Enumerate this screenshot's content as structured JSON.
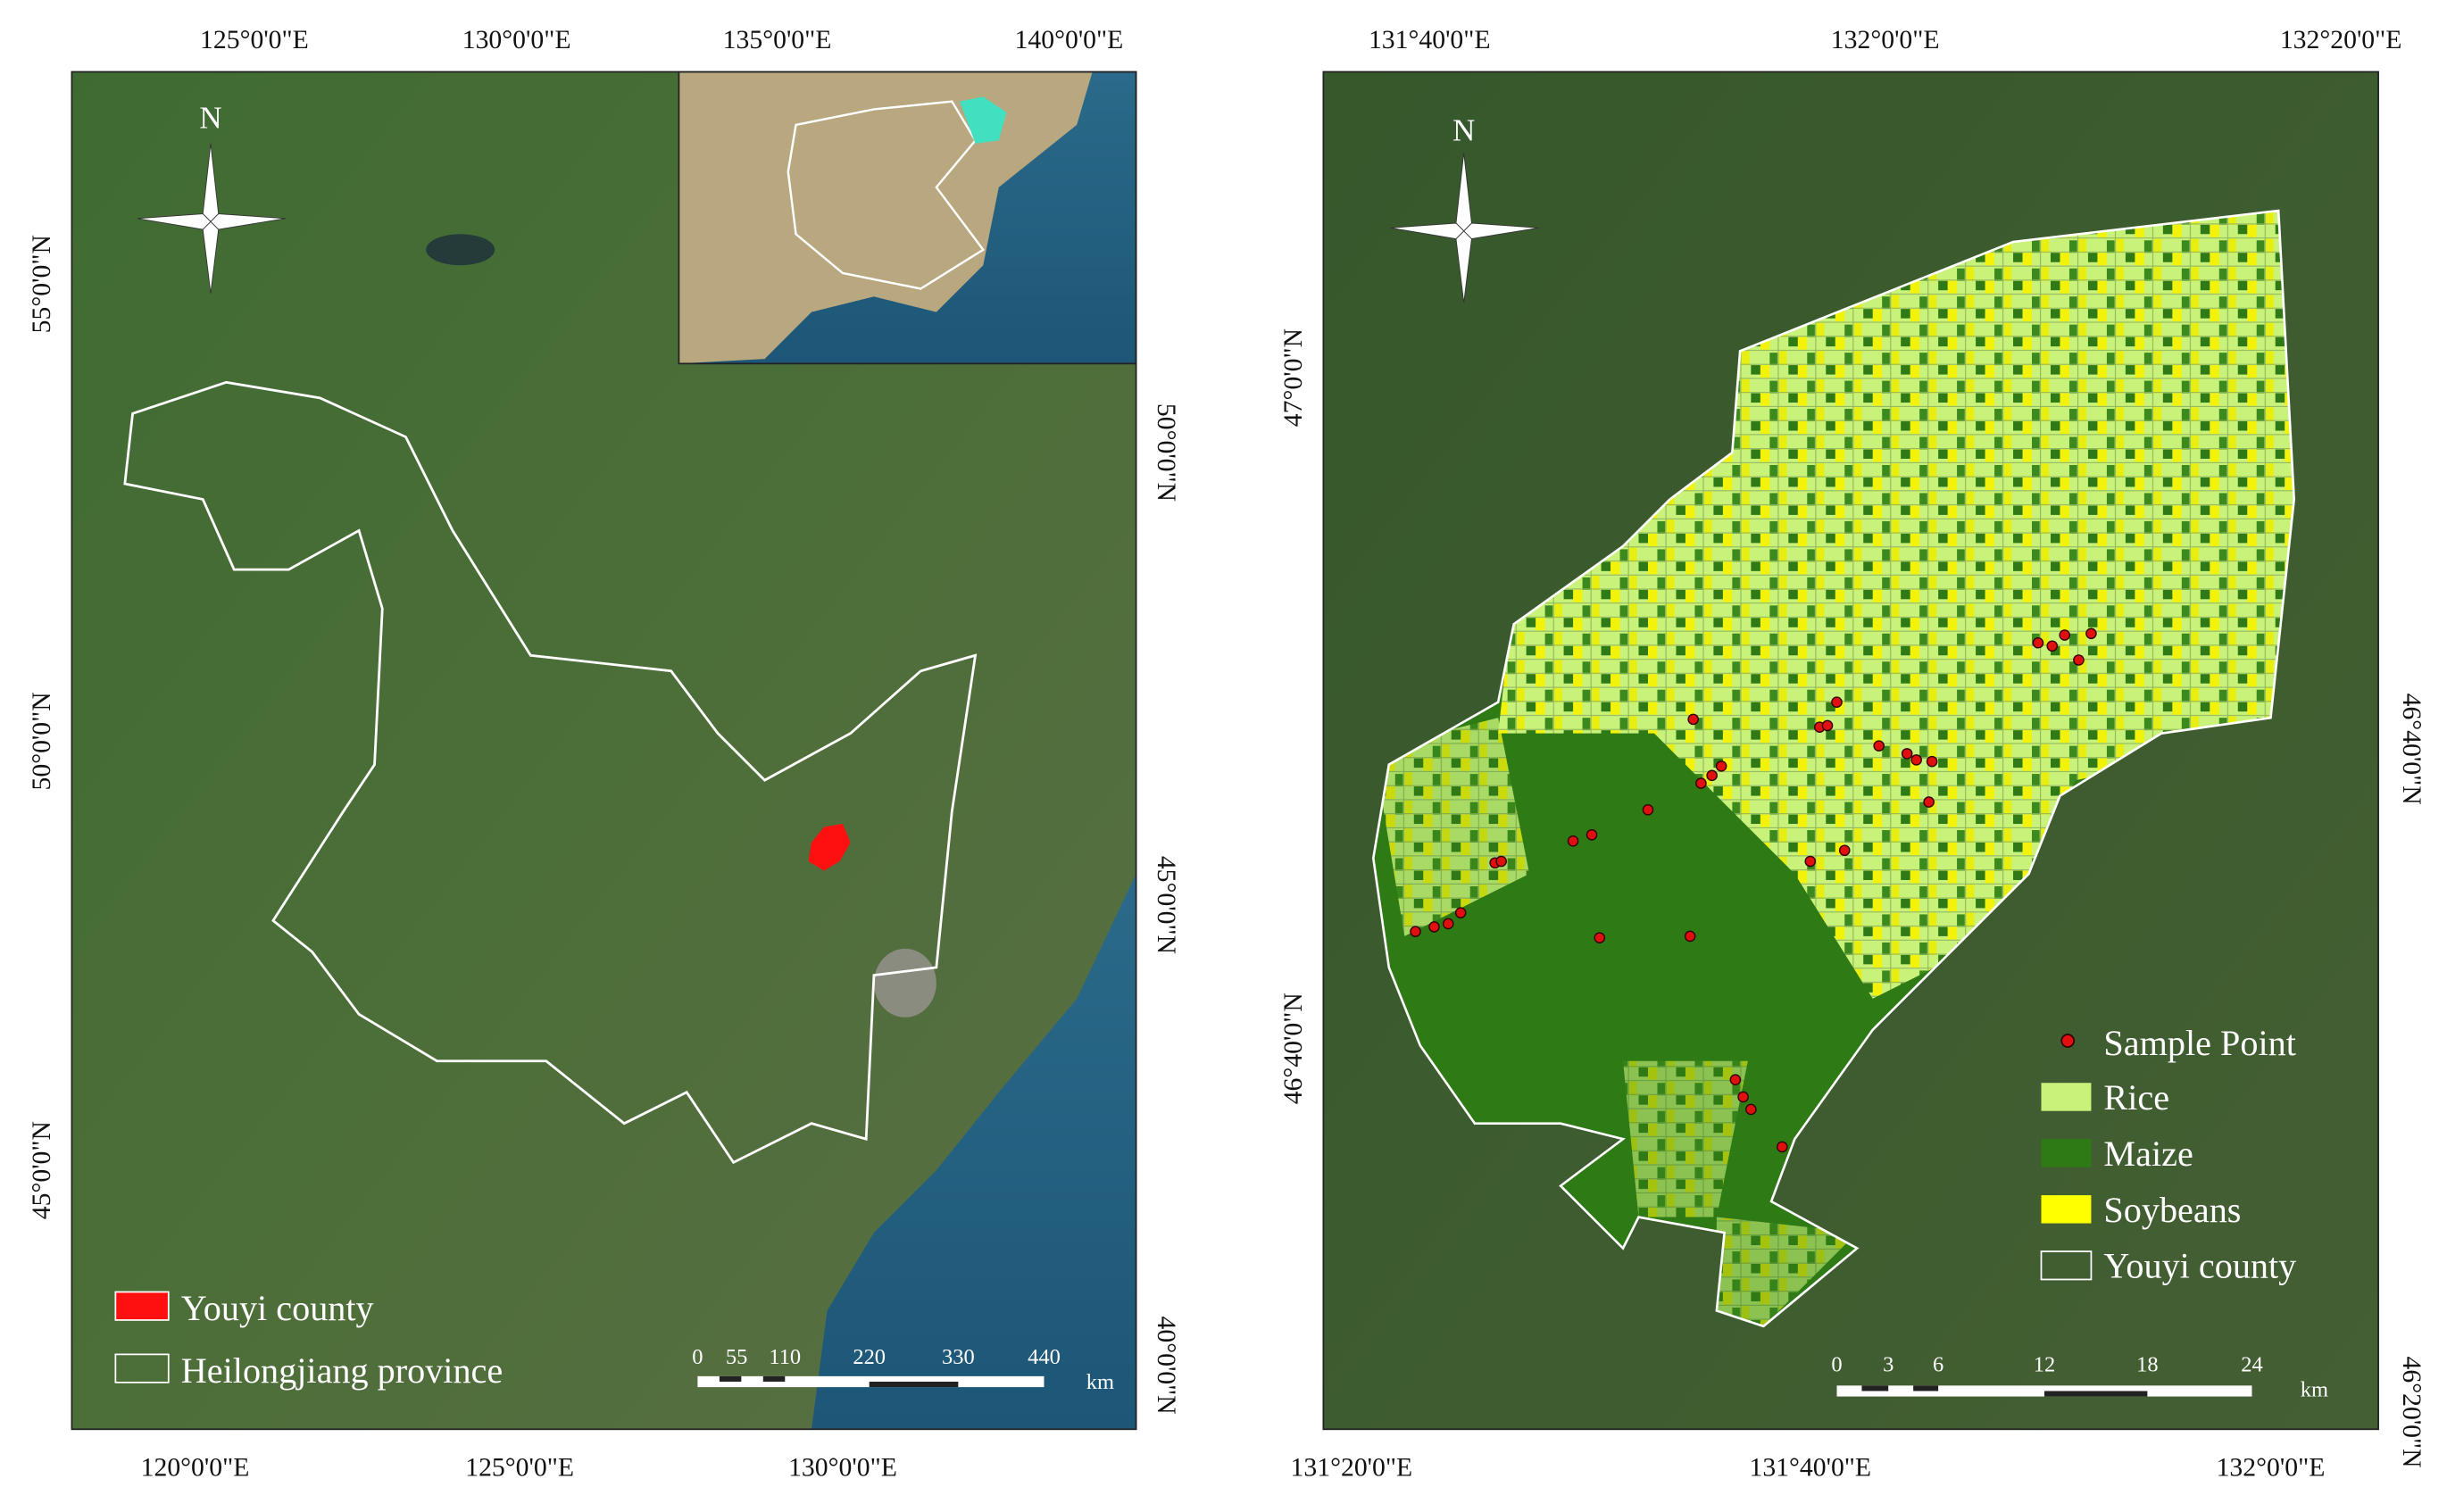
{
  "left_map": {
    "top_labels": [
      "125°0'0\"E",
      "130°0'0\"E",
      "135°0'0\"E",
      "140°0'0\"E"
    ],
    "bottom_labels": [
      "120°0'0\"E",
      "125°0'0\"E",
      "130°0'0\"E"
    ],
    "left_labels": [
      "55°0'0\"N",
      "50°0'0\"N",
      "45°0'0\"N"
    ],
    "right_labels": [
      "50°0'0\"N",
      "45°0'0\"N",
      "40°0'0\"N"
    ],
    "north": "N",
    "legend": [
      "Youyi county",
      "Heilongjiang province"
    ],
    "scale_bar": {
      "ticks": [
        0,
        55,
        110,
        220,
        330,
        440
      ],
      "unit": "km"
    }
  },
  "right_map": {
    "top_labels": [
      "131°40'0\"E",
      "132°0'0\"E",
      "132°20'0\"E"
    ],
    "bottom_labels": [
      "131°20'0\"E",
      "131°40'0\"E",
      "132°0'0\"E"
    ],
    "left_labels": [
      "47°0'0\"N",
      "46°40'0\"N"
    ],
    "right_labels": [
      "46°40'0\"N",
      "46°20'0\"N"
    ],
    "north": "N",
    "legend": [
      "Sample Point",
      "Rice",
      "Maize",
      "Soybeans",
      "Youyi county"
    ],
    "scale_bar": {
      "ticks": [
        0,
        3,
        6,
        12,
        18,
        24
      ],
      "unit": "km"
    }
  }
}
